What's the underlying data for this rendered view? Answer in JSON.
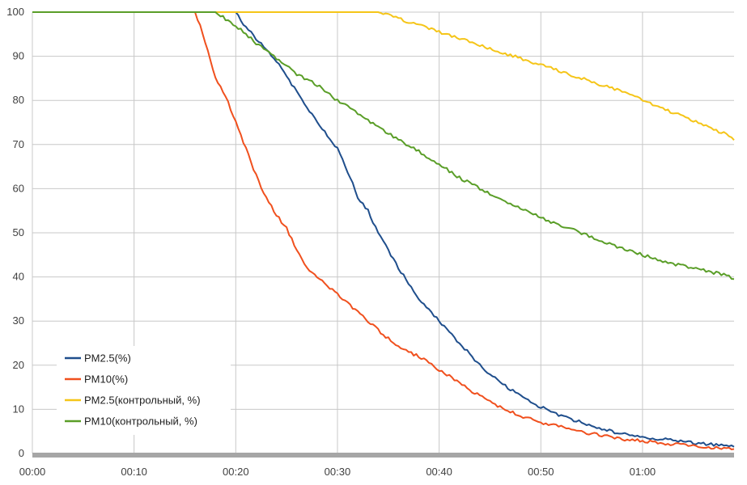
{
  "chart_data": {
    "type": "line",
    "title": "",
    "xlabel": "",
    "ylabel": "",
    "x_unit": "minutes",
    "xlim": [
      0,
      69
    ],
    "ylim": [
      0,
      100
    ],
    "grid": true,
    "legend_position": "bottom-left",
    "x_tick_labels": [
      "00:00",
      "00:10",
      "00:20",
      "00:30",
      "00:40",
      "00:50",
      "01:00"
    ],
    "y_tick_labels": [
      "0",
      "10",
      "20",
      "30",
      "40",
      "50",
      "60",
      "70",
      "80",
      "90",
      "100"
    ],
    "series": [
      {
        "name": "PM2.5(%)",
        "color": "#1f4e8c",
        "x": [
          0,
          20,
          20.5,
          22,
          24,
          26,
          28,
          30,
          31,
          32,
          33,
          34,
          36,
          38,
          40,
          42,
          44,
          46,
          48,
          50,
          52,
          54,
          56,
          58,
          60,
          62,
          64,
          66,
          68,
          69
        ],
        "y": [
          100,
          100,
          98,
          94,
          89,
          82,
          75,
          69,
          64,
          58,
          55,
          50,
          42,
          35,
          30,
          25,
          20,
          16,
          13,
          10.5,
          8.5,
          7,
          5.5,
          4.5,
          3.8,
          3.2,
          2.7,
          2.2,
          1.7,
          1.5
        ]
      },
      {
        "name": "PM10(%)",
        "color": "#f0501e",
        "x": [
          0,
          16,
          16.5,
          17,
          18,
          19,
          20,
          21,
          22,
          23,
          24,
          25,
          26,
          27,
          28,
          30,
          32,
          34,
          36,
          38,
          40,
          42,
          44,
          46,
          48,
          50,
          52,
          54,
          56,
          58,
          60,
          62,
          64,
          66,
          68,
          69
        ],
        "y": [
          100,
          100,
          97,
          93,
          85,
          81,
          75,
          69,
          63,
          58,
          54,
          51,
          46,
          42,
          40,
          36,
          32,
          28,
          24,
          22,
          19,
          16,
          13,
          10.5,
          8.5,
          7,
          6,
          5,
          4,
          3.3,
          2.8,
          2.3,
          1.9,
          1.5,
          1.2,
          1
        ]
      },
      {
        "name": "PM2.5(контрольный, %)",
        "color": "#f5c518",
        "x": [
          0,
          34,
          36,
          38,
          40,
          42,
          44,
          46,
          48,
          50,
          52,
          54,
          56,
          58,
          60,
          62,
          64,
          66,
          68,
          69
        ],
        "y": [
          100,
          100,
          98.5,
          97,
          95.5,
          94,
          92.5,
          91,
          89.5,
          88,
          86.5,
          85,
          83.5,
          82,
          80,
          78,
          76.5,
          74.5,
          72.5,
          71
        ]
      },
      {
        "name": "PM10(контрольный, %)",
        "color": "#5a9e28",
        "x": [
          0,
          18,
          19,
          20,
          22,
          24,
          26,
          28,
          30,
          32,
          34,
          36,
          38,
          40,
          42,
          44,
          46,
          48,
          50,
          52,
          54,
          56,
          58,
          60,
          62,
          64,
          66,
          68,
          69
        ],
        "y": [
          100,
          100,
          98.5,
          97,
          93,
          89.5,
          86,
          83.5,
          80,
          77,
          74,
          71,
          68.5,
          65.5,
          62.5,
          60,
          57.5,
          55.5,
          53.5,
          51.5,
          50,
          48,
          46.5,
          45,
          43.5,
          42.5,
          41.5,
          40.5,
          39.5
        ]
      }
    ]
  }
}
